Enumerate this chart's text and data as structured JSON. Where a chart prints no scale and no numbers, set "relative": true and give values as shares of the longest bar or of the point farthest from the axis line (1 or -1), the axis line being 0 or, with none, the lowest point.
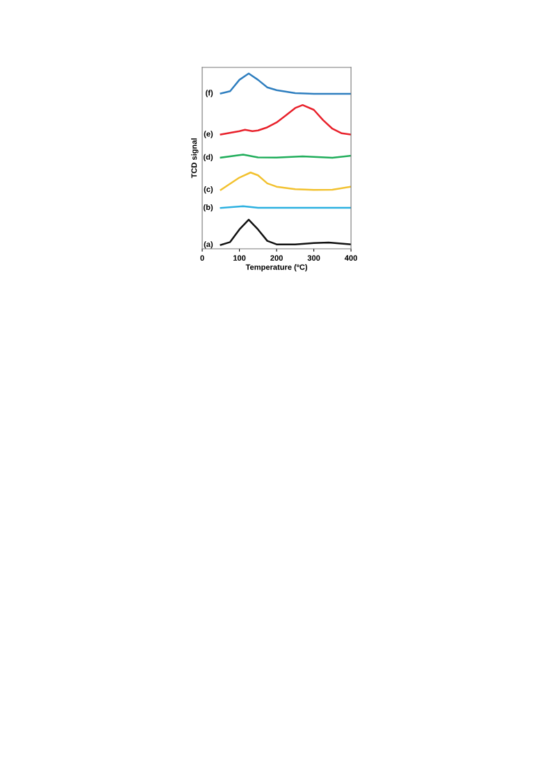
{
  "chart_data": {
    "type": "line",
    "xlabel": "Temperature (ºC)",
    "ylabel": "TCD signal",
    "relative": true,
    "xlim": [
      0,
      400
    ],
    "xticks": [
      0,
      100,
      200,
      300,
      400
    ],
    "tick_labels": "x",
    "grid": false,
    "legend": false,
    "marker": "none",
    "line_style": "solid",
    "series": [
      {
        "name": "(a)",
        "color": "#111111",
        "x": [
          50,
          75,
          100,
          125,
          150,
          175,
          200,
          250,
          300,
          340,
          400
        ],
        "values": [
          0.022,
          0.038,
          0.11,
          0.166,
          0.11,
          0.045,
          0.025,
          0.025,
          0.032,
          0.035,
          0.025
        ]
      },
      {
        "name": "(b)",
        "color": "#2bb0e0",
        "x": [
          50,
          110,
          150,
          400
        ],
        "values": [
          0.233,
          0.243,
          0.234,
          0.234
        ]
      },
      {
        "name": "(c)",
        "color": "#f2c12e",
        "x": [
          50,
          100,
          130,
          150,
          175,
          200,
          250,
          300,
          350,
          400
        ],
        "values": [
          0.336,
          0.406,
          0.435,
          0.419,
          0.373,
          0.354,
          0.34,
          0.336,
          0.337,
          0.354
        ]
      },
      {
        "name": "(d)",
        "color": "#1fad5a",
        "x": [
          50,
          110,
          150,
          200,
          270,
          350,
          400
        ],
        "values": [
          0.52,
          0.537,
          0.521,
          0.52,
          0.527,
          0.519,
          0.531
        ]
      },
      {
        "name": "(e)",
        "color": "#e8202a",
        "x": [
          50,
          100,
          115,
          135,
          150,
          175,
          200,
          225,
          250,
          270,
          300,
          325,
          350,
          375,
          400
        ],
        "values": [
          0.652,
          0.671,
          0.679,
          0.671,
          0.675,
          0.693,
          0.721,
          0.761,
          0.803,
          0.82,
          0.793,
          0.734,
          0.685,
          0.659,
          0.652
        ]
      },
      {
        "name": "(f)",
        "color": "#2e7ebf",
        "x": [
          50,
          75,
          100,
          125,
          150,
          175,
          200,
          250,
          300,
          400
        ],
        "values": [
          0.886,
          0.899,
          0.964,
          1.0,
          0.964,
          0.921,
          0.905,
          0.888,
          0.884,
          0.884
        ]
      }
    ]
  }
}
